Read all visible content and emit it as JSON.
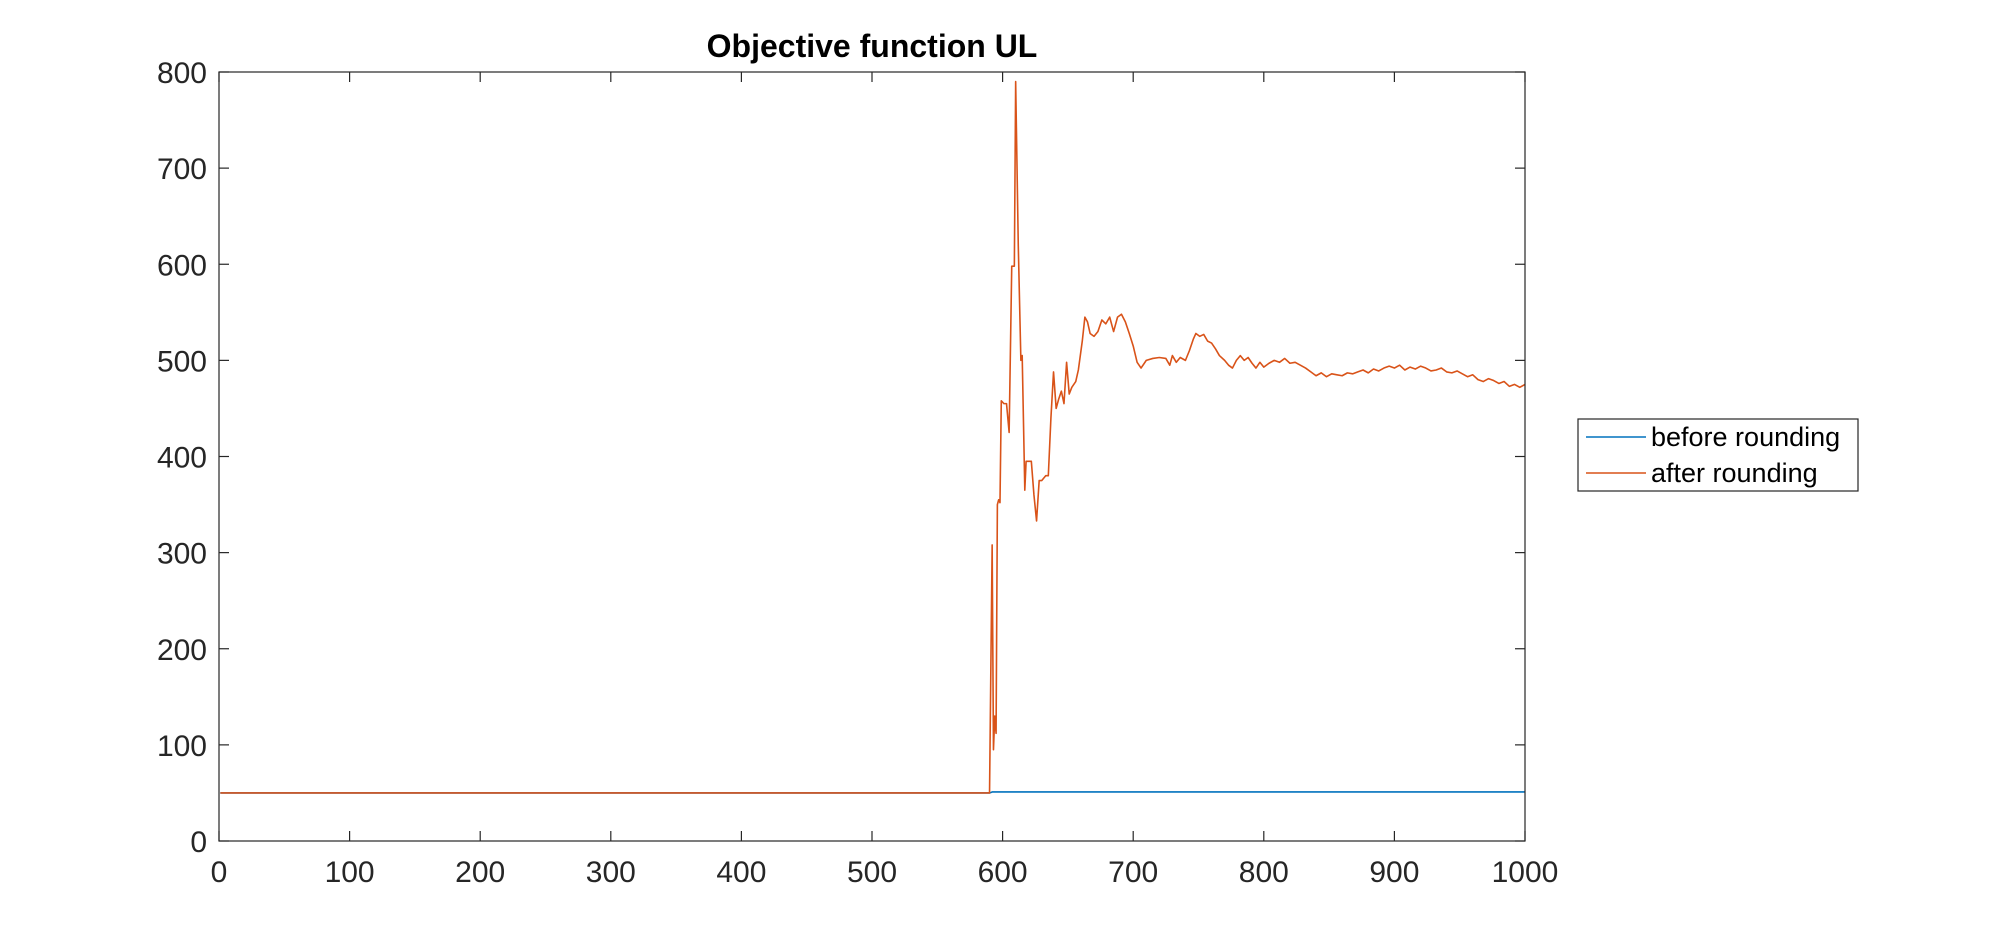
{
  "chart_data": {
    "type": "line",
    "title": "Objective function UL",
    "xlabel": "",
    "ylabel": "",
    "xlim": [
      0,
      1000
    ],
    "ylim": [
      0,
      800
    ],
    "xticks": [
      0,
      100,
      200,
      300,
      400,
      500,
      600,
      700,
      800,
      900,
      1000
    ],
    "yticks": [
      0,
      100,
      200,
      300,
      400,
      500,
      600,
      700,
      800
    ],
    "grid": false,
    "legend": {
      "placement": "outside-right",
      "entries": [
        "before rounding",
        "after rounding"
      ]
    },
    "series": [
      {
        "name": "before rounding",
        "color": "#0072BD",
        "points": [
          [
            1,
            50
          ],
          [
            590,
            50
          ],
          [
            592,
            51
          ],
          [
            1000,
            51
          ]
        ]
      },
      {
        "name": "after rounding",
        "color": "#D95319",
        "points": [
          [
            1,
            50
          ],
          [
            590,
            50
          ],
          [
            592,
            308
          ],
          [
            593,
            95
          ],
          [
            594,
            130
          ],
          [
            595,
            112
          ],
          [
            596,
            350
          ],
          [
            597,
            355
          ],
          [
            598,
            352
          ],
          [
            599,
            458
          ],
          [
            601,
            455
          ],
          [
            603,
            455
          ],
          [
            605,
            425
          ],
          [
            607,
            598
          ],
          [
            609,
            598
          ],
          [
            610,
            790
          ],
          [
            612,
            620
          ],
          [
            614,
            500
          ],
          [
            615,
            505
          ],
          [
            617,
            365
          ],
          [
            618,
            395
          ],
          [
            622,
            395
          ],
          [
            624,
            360
          ],
          [
            626,
            333
          ],
          [
            628,
            375
          ],
          [
            630,
            375
          ],
          [
            633,
            380
          ],
          [
            635,
            380
          ],
          [
            637,
            440
          ],
          [
            639,
            488
          ],
          [
            641,
            450
          ],
          [
            643,
            460
          ],
          [
            645,
            468
          ],
          [
            647,
            455
          ],
          [
            649,
            498
          ],
          [
            651,
            465
          ],
          [
            653,
            472
          ],
          [
            656,
            478
          ],
          [
            658,
            490
          ],
          [
            661,
            520
          ],
          [
            663,
            545
          ],
          [
            665,
            540
          ],
          [
            667,
            528
          ],
          [
            670,
            525
          ],
          [
            673,
            530
          ],
          [
            676,
            542
          ],
          [
            679,
            538
          ],
          [
            682,
            545
          ],
          [
            685,
            530
          ],
          [
            688,
            545
          ],
          [
            691,
            548
          ],
          [
            694,
            540
          ],
          [
            697,
            528
          ],
          [
            700,
            515
          ],
          [
            703,
            498
          ],
          [
            706,
            492
          ],
          [
            710,
            500
          ],
          [
            715,
            502
          ],
          [
            720,
            503
          ],
          [
            725,
            502
          ],
          [
            728,
            495
          ],
          [
            730,
            505
          ],
          [
            733,
            498
          ],
          [
            736,
            503
          ],
          [
            740,
            500
          ],
          [
            743,
            510
          ],
          [
            746,
            522
          ],
          [
            748,
            528
          ],
          [
            751,
            525
          ],
          [
            754,
            527
          ],
          [
            757,
            520
          ],
          [
            760,
            518
          ],
          [
            763,
            512
          ],
          [
            766,
            505
          ],
          [
            770,
            500
          ],
          [
            773,
            495
          ],
          [
            776,
            492
          ],
          [
            779,
            500
          ],
          [
            782,
            505
          ],
          [
            785,
            500
          ],
          [
            788,
            503
          ],
          [
            791,
            497
          ],
          [
            794,
            492
          ],
          [
            797,
            498
          ],
          [
            800,
            493
          ],
          [
            804,
            497
          ],
          [
            808,
            500
          ],
          [
            812,
            498
          ],
          [
            816,
            502
          ],
          [
            820,
            497
          ],
          [
            824,
            498
          ],
          [
            828,
            495
          ],
          [
            832,
            492
          ],
          [
            836,
            488
          ],
          [
            840,
            484
          ],
          [
            844,
            487
          ],
          [
            848,
            483
          ],
          [
            852,
            486
          ],
          [
            856,
            485
          ],
          [
            860,
            484
          ],
          [
            864,
            487
          ],
          [
            868,
            486
          ],
          [
            872,
            488
          ],
          [
            876,
            490
          ],
          [
            880,
            487
          ],
          [
            884,
            491
          ],
          [
            888,
            489
          ],
          [
            892,
            492
          ],
          [
            896,
            494
          ],
          [
            900,
            492
          ],
          [
            904,
            495
          ],
          [
            908,
            490
          ],
          [
            912,
            493
          ],
          [
            916,
            491
          ],
          [
            920,
            494
          ],
          [
            924,
            492
          ],
          [
            928,
            489
          ],
          [
            932,
            490
          ],
          [
            936,
            492
          ],
          [
            940,
            488
          ],
          [
            944,
            487
          ],
          [
            948,
            489
          ],
          [
            952,
            486
          ],
          [
            956,
            483
          ],
          [
            960,
            485
          ],
          [
            964,
            480
          ],
          [
            968,
            478
          ],
          [
            972,
            481
          ],
          [
            976,
            479
          ],
          [
            980,
            476
          ],
          [
            984,
            478
          ],
          [
            988,
            473
          ],
          [
            992,
            475
          ],
          [
            996,
            472
          ],
          [
            1000,
            475
          ]
        ]
      }
    ]
  }
}
